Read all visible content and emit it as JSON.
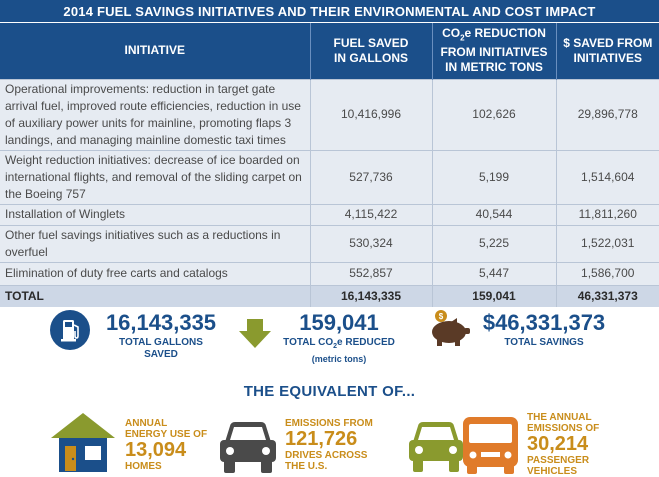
{
  "title": "2014 FUEL SAVINGS INITIATIVES AND THEIR ENVIRONMENTAL AND COST IMPACT",
  "table": {
    "headers": {
      "initiative": "INITIATIVE",
      "fuel_line1": "FUEL SAVED",
      "fuel_line2": "IN GALLONS",
      "co2_line1a": "CO",
      "co2_sub": "2",
      "co2_line1b": "e REDUCTION",
      "co2_line2": "FROM INITIATIVES",
      "co2_line3": "IN METRIC TONS",
      "savings_line1": "$ SAVED FROM",
      "savings_line2": "INITIATIVES"
    },
    "rows": [
      {
        "initiative": "Operational improvements: reduction in target gate arrival fuel, improved route efficiencies, reduction in use of auxiliary power units for mainline, promoting flaps 3 landings, and managing mainline domestic taxi times",
        "fuel": "10,416,996",
        "co2": "102,626",
        "savings": "29,896,778"
      },
      {
        "initiative": "Weight reduction initiatives: decrease of ice boarded on international flights, and removal of the sliding carpet on the Boeing 757",
        "fuel": "527,736",
        "co2": "5,199",
        "savings": "1,514,604"
      },
      {
        "initiative": "Installation of Winglets",
        "fuel": "4,115,422",
        "co2": "40,544",
        "savings": "11,811,260"
      },
      {
        "initiative": "Other fuel savings initiatives such as a reductions in overfuel",
        "fuel": "530,324",
        "co2": "5,225",
        "savings": "1,522,031"
      },
      {
        "initiative": "Elimination of duty free carts and catalogs",
        "fuel": "552,857",
        "co2": "5,447",
        "savings": "1,586,700"
      }
    ],
    "total": {
      "label": "TOTAL",
      "fuel": "16,143,335",
      "co2": "159,041",
      "savings": "46,331,373"
    }
  },
  "summary": {
    "gallons_value": "16,143,335",
    "gallons_label": "TOTAL GALLONS SAVED",
    "co2_value": "159,041",
    "co2_label_a": "TOTAL CO",
    "co2_label_sub": "2",
    "co2_label_b": "e REDUCED",
    "co2_label_units": "(metric tons)",
    "savings_value": "$46,331,373",
    "savings_label": "TOTAL SAVINGS"
  },
  "equivalent": {
    "title": "THE EQUIVALENT OF...",
    "homes": {
      "line1": "ANNUAL",
      "line2": "ENERGY USE OF",
      "value": "13,094",
      "line3": "HOMES"
    },
    "drives": {
      "line1": "EMISSIONS FROM",
      "value": "121,726",
      "line2": "DRIVES ACROSS",
      "line3": "THE U.S."
    },
    "vehicles": {
      "line1": "THE ANNUAL",
      "line2": "EMISSIONS OF",
      "value": "30,214",
      "line3": "PASSENGER",
      "line4": "VEHICLES"
    }
  },
  "icons": {
    "gas_pump": "gas-pump-icon",
    "arrow": "down-arrow-icon",
    "piggy": "piggy-bank-icon",
    "house": "house-icon",
    "car": "car-icon",
    "vehicles": "car-and-bus-icon"
  },
  "colors": {
    "navy": "#1b4f8a",
    "row_bg": "#e6ebf2",
    "total_bg": "#cdd7e6",
    "olive": "#8a9a2e",
    "gold": "#c98d1b",
    "orange": "#e07b2a",
    "gray": "#4a4a4a",
    "brown": "#5a3a26"
  }
}
